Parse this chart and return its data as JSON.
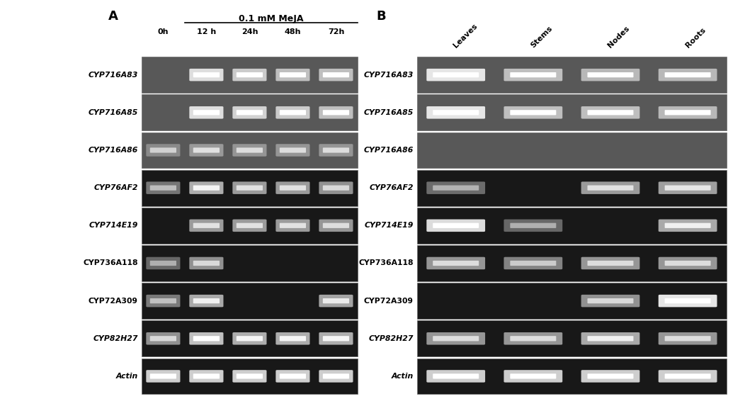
{
  "fig_width": 10.52,
  "fig_height": 5.73,
  "panel_A_label": "A",
  "panel_B_label": "B",
  "genes": [
    "CYP716A83",
    "CYP716A85",
    "CYP716A86",
    "CYP76AF2",
    "CYP714E19",
    "CYP736A118",
    "CYP72A309",
    "CYP82H27",
    "Actin"
  ],
  "genes_italic": [
    true,
    true,
    true,
    true,
    true,
    false,
    false,
    true,
    true
  ],
  "time_labels": [
    "0h",
    "12 h",
    "24h",
    "48h",
    "72h"
  ],
  "tissue_labels": [
    "Leaves",
    "Stems",
    "Nodes",
    "Roots"
  ],
  "meja_label": "0.1 mM MeJA",
  "dark_bg_genes": [
    "CYP76AF2",
    "CYP714E19",
    "CYP736A118",
    "CYP72A309",
    "CYP82H27",
    "Actin"
  ],
  "panel_A_bands": {
    "CYP716A83": [
      0,
      2.8,
      2.3,
      2.0,
      2.0
    ],
    "CYP716A85": [
      0,
      2.8,
      2.5,
      2.3,
      2.0
    ],
    "CYP716A86": [
      0.6,
      1.0,
      0.9,
      0.9,
      0.9
    ],
    "CYP76AF2": [
      0.6,
      1.8,
      1.4,
      1.4,
      1.2
    ],
    "CYP714E19": [
      0,
      1.4,
      1.4,
      1.4,
      1.3
    ],
    "CYP736A118": [
      0.3,
      1.2,
      0,
      0,
      0
    ],
    "CYP72A309": [
      0.7,
      1.7,
      0,
      0,
      1.6
    ],
    "CYP82H27": [
      1.2,
      2.2,
      1.8,
      1.8,
      1.8
    ],
    "Actin": [
      2.5,
      2.5,
      2.5,
      2.5,
      2.5
    ]
  },
  "panel_B_bands": {
    "CYP716A83": [
      3.2,
      2.0,
      1.8,
      1.8
    ],
    "CYP716A85": [
      3.0,
      2.0,
      2.0,
      1.8
    ],
    "CYP716A86": [
      0,
      0,
      0,
      0
    ],
    "CYP76AF2": [
      0.4,
      0,
      1.4,
      1.5
    ],
    "CYP714E19": [
      2.8,
      0.3,
      0,
      1.7
    ],
    "CYP736A118": [
      1.3,
      0.9,
      1.3,
      1.3
    ],
    "CYP72A309": [
      0,
      0,
      1.2,
      3.0
    ],
    "CYP82H27": [
      1.3,
      1.3,
      1.7,
      1.3
    ],
    "Actin": [
      2.5,
      2.5,
      2.5,
      2.5
    ]
  }
}
